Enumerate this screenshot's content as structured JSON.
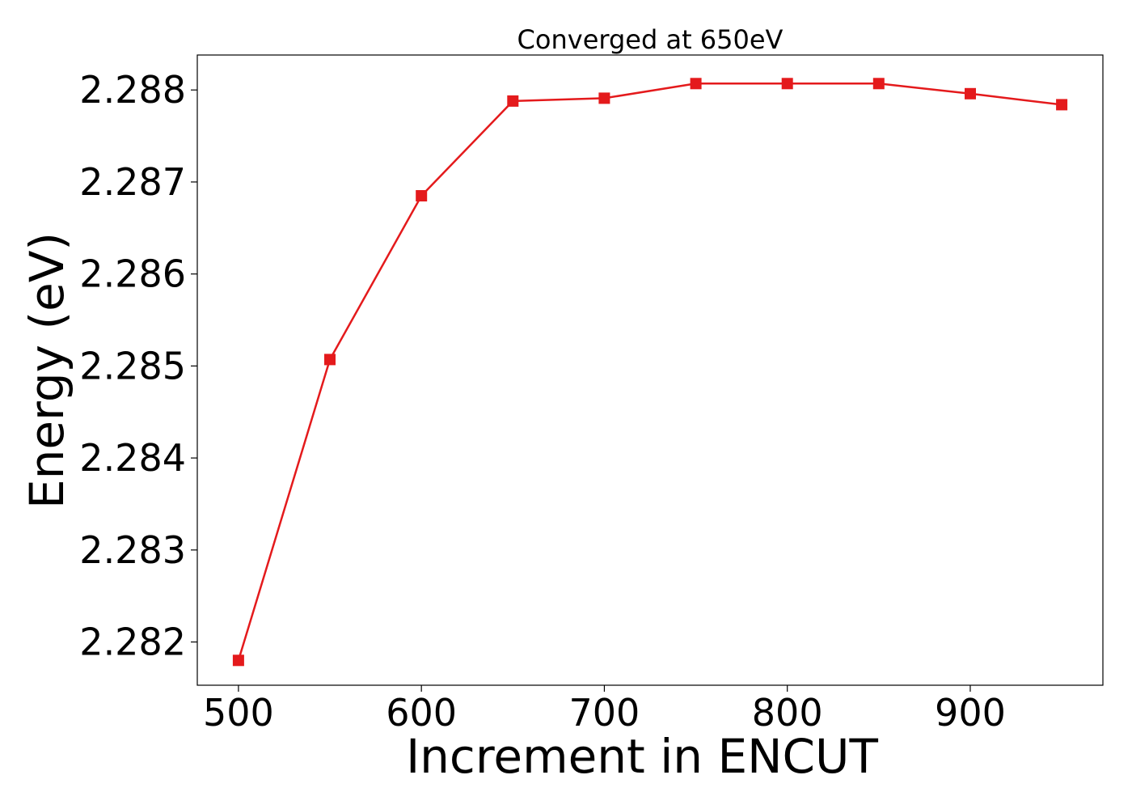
{
  "chart_data": {
    "type": "line",
    "title": "Converged at 650eV",
    "xlabel": "Increment in ENCUT",
    "ylabel": "Energy (eV)",
    "xlim": [
      477.5,
      972.5
    ],
    "ylim": [
      2.28153,
      2.28838
    ],
    "xticks": [
      500,
      600,
      700,
      800,
      900
    ],
    "xtick_labels": [
      "500",
      "600",
      "700",
      "800",
      "900"
    ],
    "yticks": [
      2.282,
      2.283,
      2.284,
      2.285,
      2.286,
      2.287,
      2.288
    ],
    "ytick_labels": [
      "2.282",
      "2.283",
      "2.284",
      "2.285",
      "2.286",
      "2.287",
      "2.288"
    ],
    "grid": false,
    "legend": "none",
    "series": [
      {
        "color": "#e41a1c",
        "marker": "square",
        "x": [
          500,
          550,
          600,
          650,
          700,
          750,
          800,
          850,
          900,
          950
        ],
        "y": [
          2.2818,
          2.28507,
          2.28685,
          2.28788,
          2.28791,
          2.28807,
          2.28807,
          2.28807,
          2.28796,
          2.28784
        ]
      }
    ]
  }
}
